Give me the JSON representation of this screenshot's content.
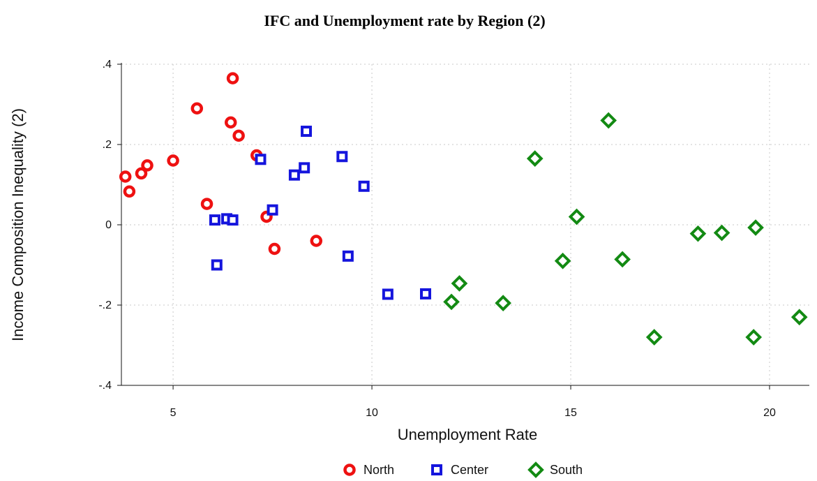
{
  "chart_data": {
    "type": "scatter",
    "title": "IFC and Unemployment rate by Region (2)",
    "xlabel": "Unemployment Rate",
    "ylabel": "Income Composition Inequality (2)",
    "xlim": [
      3.7,
      21.0
    ],
    "ylim": [
      -0.4,
      0.4
    ],
    "xticks": [
      5,
      10,
      15,
      20
    ],
    "xtick_labels": [
      "5",
      "10",
      "15",
      "20"
    ],
    "yticks": [
      -0.4,
      -0.2,
      0,
      0.2,
      0.4
    ],
    "ytick_labels": [
      "-.4",
      "-.2",
      "0",
      ".2",
      ".4"
    ],
    "grid": true,
    "legend_position": "bottom",
    "series": [
      {
        "name": "North",
        "marker": "circle",
        "color": "#ee1111",
        "points": [
          [
            3.8,
            0.12
          ],
          [
            3.9,
            0.083
          ],
          [
            4.2,
            0.128
          ],
          [
            4.35,
            0.148
          ],
          [
            5.0,
            0.16
          ],
          [
            5.6,
            0.29
          ],
          [
            5.85,
            0.052
          ],
          [
            6.5,
            0.365
          ],
          [
            6.45,
            0.255
          ],
          [
            6.65,
            0.222
          ],
          [
            7.1,
            0.173
          ],
          [
            7.35,
            0.02
          ],
          [
            7.55,
            -0.06
          ],
          [
            8.6,
            -0.04
          ]
        ]
      },
      {
        "name": "Center",
        "marker": "square",
        "color": "#1515dd",
        "points": [
          [
            6.05,
            0.012
          ],
          [
            6.1,
            -0.1
          ],
          [
            6.35,
            0.015
          ],
          [
            6.5,
            0.012
          ],
          [
            7.2,
            0.163
          ],
          [
            7.5,
            0.037
          ],
          [
            8.05,
            0.124
          ],
          [
            8.3,
            0.142
          ],
          [
            8.35,
            0.233
          ],
          [
            9.25,
            0.17
          ],
          [
            9.4,
            -0.078
          ],
          [
            9.8,
            0.096
          ],
          [
            10.4,
            -0.173
          ],
          [
            11.35,
            -0.172
          ]
        ]
      },
      {
        "name": "South",
        "marker": "diamond",
        "color": "#138a13",
        "points": [
          [
            12.0,
            -0.192
          ],
          [
            12.2,
            -0.146
          ],
          [
            13.3,
            -0.195
          ],
          [
            14.1,
            0.165
          ],
          [
            14.8,
            -0.09
          ],
          [
            15.15,
            0.02
          ],
          [
            15.95,
            0.26
          ],
          [
            16.3,
            -0.086
          ],
          [
            17.1,
            -0.28
          ],
          [
            18.2,
            -0.022
          ],
          [
            18.8,
            -0.02
          ],
          [
            19.6,
            -0.28
          ],
          [
            19.65,
            -0.007
          ],
          [
            20.75,
            -0.23
          ]
        ]
      }
    ]
  }
}
